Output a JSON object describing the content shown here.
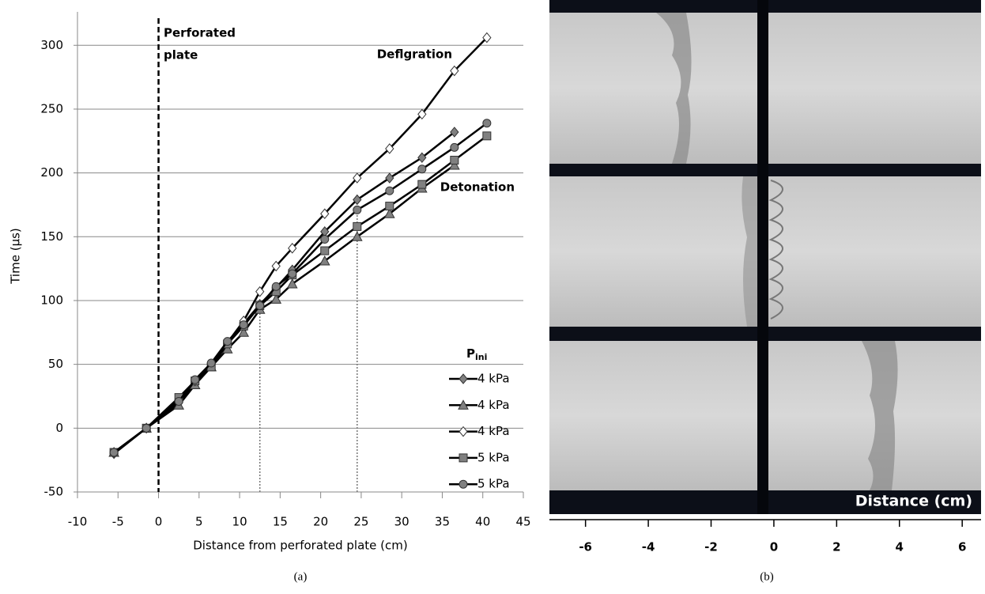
{
  "chart_data": {
    "type": "line",
    "ylabel": "Time (µs)",
    "xlabel": "Distance from perforated plate (cm)",
    "xlim": [
      -10,
      45
    ],
    "xticks": [
      -10,
      -5,
      0,
      5,
      10,
      15,
      20,
      25,
      30,
      35,
      40,
      45
    ],
    "ylim": [
      -50,
      320
    ],
    "yticks": [
      -50,
      0,
      50,
      100,
      150,
      200,
      250,
      300
    ],
    "grid": true,
    "legend_title": "P",
    "legend_title_sub": "ini",
    "annotations": [
      "Perforated",
      "plate",
      "Deflgration",
      "Detonation"
    ],
    "plate_line_x": 0,
    "marker_lines": [
      {
        "x": 12.5,
        "y": 96
      },
      {
        "x": 24.5,
        "y": 171
      }
    ],
    "series": [
      {
        "name": "4 kPa",
        "color": "#000000",
        "marker": "diamond",
        "marker_fill": "#808080",
        "x": [
          -5.5,
          -1.5,
          2.5,
          4.5,
          6.5,
          8.5,
          10.5,
          12.5,
          14.5,
          16.5,
          20.5,
          24.5,
          28.5,
          32.5,
          36.5
        ],
        "values": [
          -20,
          0,
          20,
          36,
          50,
          66,
          82,
          97,
          110,
          124,
          154,
          179,
          196,
          212,
          232
        ]
      },
      {
        "name": "4 kPa",
        "color": "#000000",
        "marker": "triangle",
        "marker_fill": "#808080",
        "x": [
          -5.5,
          -1.5,
          2.5,
          4.5,
          6.5,
          8.5,
          10.5,
          12.5,
          14.5,
          16.5,
          20.5,
          24.5,
          28.5,
          32.5,
          36.5
        ],
        "values": [
          -19,
          0,
          18,
          34,
          48,
          62,
          75,
          93,
          101,
          113,
          131,
          150,
          168,
          188,
          206
        ]
      },
      {
        "name": "4 kPa",
        "color": "#000000",
        "marker": "diamond",
        "marker_fill": "#ffffff",
        "x": [
          -5.5,
          -1.5,
          2.5,
          4.5,
          6.5,
          8.5,
          10.5,
          12.5,
          14.5,
          16.5,
          20.5,
          24.5,
          28.5,
          32.5,
          36.5,
          40.5
        ],
        "values": [
          -19,
          0,
          22,
          37,
          50,
          67,
          84,
          107,
          127,
          141,
          168,
          196,
          219,
          246,
          280,
          306
        ]
      },
      {
        "name": "5 kPa",
        "color": "#000000",
        "marker": "square",
        "marker_fill": "#808080",
        "x": [
          -5.5,
          -1.5,
          2.5,
          4.5,
          6.5,
          8.5,
          10.5,
          12.5,
          14.5,
          16.5,
          20.5,
          24.5,
          28.5,
          32.5,
          36.5,
          40.5
        ],
        "values": [
          -19,
          0,
          24,
          37,
          48,
          66,
          80,
          96,
          107,
          120,
          139,
          158,
          174,
          191,
          210,
          229
        ]
      },
      {
        "name": "5 kPa",
        "color": "#000000",
        "marker": "circle",
        "marker_fill": "#808080",
        "x": [
          -5.5,
          -1.5,
          2.5,
          4.5,
          6.5,
          8.5,
          10.5,
          12.5,
          14.5,
          16.5,
          20.5,
          24.5,
          28.5,
          32.5,
          36.5,
          40.5
        ],
        "values": [
          -19,
          0,
          21,
          38,
          51,
          68,
          81,
          96,
          111,
          121,
          148,
          171,
          186,
          203,
          220,
          239
        ]
      }
    ]
  },
  "image_panel": {
    "label": "Distance (cm)",
    "xlim": [
      -7.15,
      6.6
    ],
    "xticks": [
      -6,
      -4,
      -2,
      0,
      2,
      4,
      6
    ]
  },
  "captions": [
    "(a)",
    "(b)"
  ]
}
